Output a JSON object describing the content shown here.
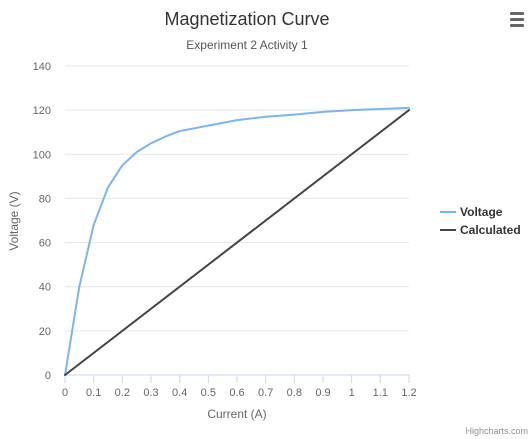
{
  "menu": {
    "icon": "hamburger-menu-icon"
  },
  "credits": "Highcharts.com",
  "chart_data": {
    "type": "line",
    "title": "Magnetization Curve",
    "subtitle": "Experiment 2 Activity 1",
    "xlabel": "Current (A)",
    "ylabel": "Voltage (V)",
    "xlim": [
      0,
      1.2
    ],
    "ylim": [
      0,
      140
    ],
    "xticks": [
      "0",
      "0.1",
      "0.2",
      "0.3",
      "0.4",
      "0.5",
      "0.6",
      "0.7",
      "0.8",
      "0.9",
      "1",
      "1.1",
      "1.2"
    ],
    "yticks": [
      "0",
      "20",
      "40",
      "60",
      "80",
      "100",
      "120",
      "140"
    ],
    "grid": "horizontal",
    "legend_position": "right",
    "series": [
      {
        "name": "Voltage",
        "color": "#7cb5ec",
        "points": [
          [
            0,
            0
          ],
          [
            0.05,
            40
          ],
          [
            0.1,
            68
          ],
          [
            0.15,
            85
          ],
          [
            0.2,
            95
          ],
          [
            0.25,
            101
          ],
          [
            0.3,
            105
          ],
          [
            0.35,
            108
          ],
          [
            0.4,
            110.5
          ],
          [
            0.5,
            113
          ],
          [
            0.6,
            115.5
          ],
          [
            0.7,
            117
          ],
          [
            0.8,
            118
          ],
          [
            0.9,
            119.2
          ],
          [
            1.0,
            120
          ],
          [
            1.1,
            120.5
          ],
          [
            1.2,
            121
          ]
        ]
      },
      {
        "name": "Calculated",
        "color": "#434348",
        "points": [
          [
            0,
            0
          ],
          [
            1.2,
            120
          ]
        ]
      }
    ]
  }
}
